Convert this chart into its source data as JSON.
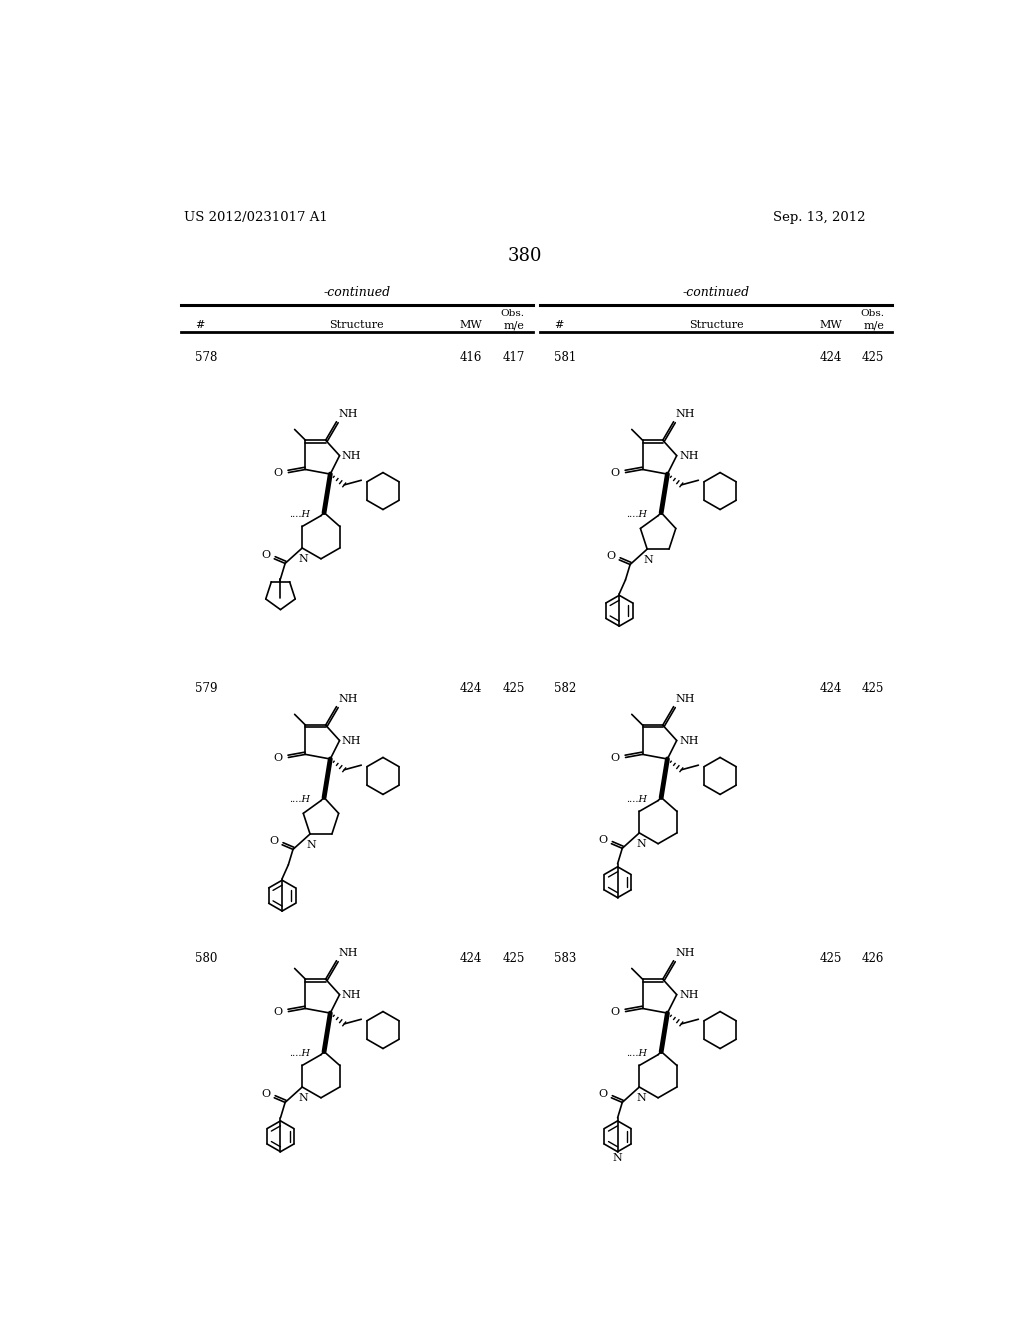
{
  "page_number": "380",
  "patent_number": "US 2012/0231017 A1",
  "patent_date": "Sep. 13, 2012",
  "background_color": "#ffffff",
  "text_color": "#000000",
  "left_table": {
    "header": "-continued",
    "compounds": [
      {
        "num": "578",
        "mw": "416",
        "obs": "417"
      },
      {
        "num": "579",
        "mw": "424",
        "obs": "425"
      },
      {
        "num": "580",
        "mw": "424",
        "obs": "425"
      }
    ]
  },
  "right_table": {
    "header": "-continued",
    "compounds": [
      {
        "num": "581",
        "mw": "424",
        "obs": "425"
      },
      {
        "num": "582",
        "mw": "424",
        "obs": "425"
      },
      {
        "num": "583",
        "mw": "425",
        "obs": "426"
      }
    ]
  }
}
